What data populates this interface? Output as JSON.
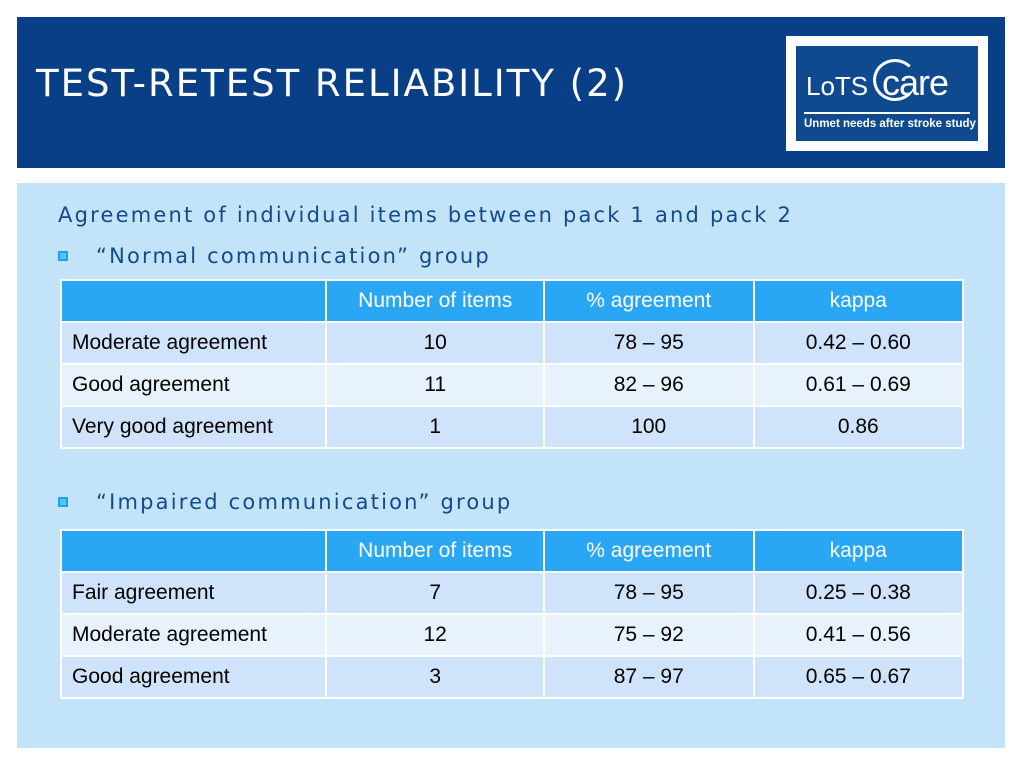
{
  "slide": {
    "title": "TEST-RETEST RELIABILITY (2)",
    "subtitle": "Agreement of individual items between pack 1 and pack 2"
  },
  "logo": {
    "brand_lots": "LoTS",
    "brand_care": "care",
    "tagline": "Unmet needs after stroke study"
  },
  "colors": {
    "header_bg": "#083f87",
    "content_bg": "#c3e4f8",
    "table_header_bg": "#2aa7f4",
    "row_dark": "#cfe4fa",
    "row_light": "#e7f2fc",
    "text_blue": "#124a8a"
  },
  "groups": [
    {
      "label": "“Normal communication” group",
      "headers": [
        "",
        "Number of items",
        "% agreement",
        "kappa"
      ],
      "rows": [
        [
          "Moderate agreement",
          "10",
          "78 – 95",
          "0.42 – 0.60"
        ],
        [
          "Good agreement",
          "11",
          "82 – 96",
          "0.61 – 0.69"
        ],
        [
          "Very good agreement",
          "1",
          "100",
          "0.86"
        ]
      ]
    },
    {
      "label": "“Impaired communication” group",
      "headers": [
        "",
        "Number of items",
        "% agreement",
        "kappa"
      ],
      "rows": [
        [
          "Fair agreement",
          "7",
          "78 – 95",
          "0.25 – 0.38"
        ],
        [
          "Moderate agreement",
          "12",
          "75 – 92",
          "0.41 – 0.56"
        ],
        [
          "Good agreement",
          "3",
          "87 – 97",
          "0.65 – 0.67"
        ]
      ]
    }
  ]
}
